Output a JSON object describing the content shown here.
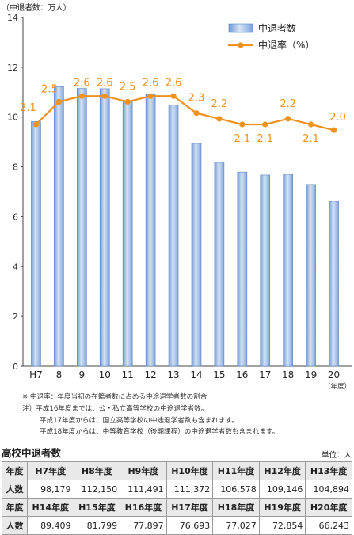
{
  "chart_data": {
    "type": "bar+line",
    "y_unit_label": "（中退者数：万人）",
    "categories": [
      "H7",
      "8",
      "9",
      "10",
      "11",
      "12",
      "13",
      "14",
      "15",
      "16",
      "17",
      "18",
      "19",
      "20"
    ],
    "x_unit_label": "（年度）",
    "ylim": [
      0,
      14
    ],
    "yticks": [
      "0",
      "2",
      "4",
      "6",
      "8",
      "10",
      "12",
      "14"
    ],
    "legend_position": "top-right",
    "series": [
      {
        "name": "中退者数",
        "type": "bar",
        "color": "#8fb2e0",
        "values": [
          9.82,
          11.22,
          11.15,
          11.14,
          10.66,
          10.91,
          10.49,
          8.94,
          8.18,
          7.79,
          7.67,
          7.7,
          7.29,
          6.62
        ]
      },
      {
        "name": "中退率（%）",
        "type": "line",
        "color": "#f0921e",
        "values": [
          2.1,
          2.5,
          2.6,
          2.6,
          2.5,
          2.6,
          2.6,
          2.3,
          2.2,
          2.1,
          2.1,
          2.2,
          2.1,
          2.0
        ],
        "labels": [
          "2.1",
          "2.5",
          "2.6",
          "2.6",
          "2.5",
          "2.6",
          "2.6",
          "2.3",
          "2.2",
          "2.1",
          "2.1",
          "2.2",
          "2.1",
          "2.0"
        ]
      }
    ]
  },
  "notes": {
    "line1": "※ 中退率：年度当初の在籍者数に占める中途退学者数の割合",
    "line2": "注）平成16年度までは、公・私立高等学校の中途退学者数。",
    "line3": "平成17年度からは、国立高等学校の中途退学者数も含まれます。",
    "line4": "平成18年度からは、中等教育学校（後期課程）の中途退学者数も含まれます。"
  },
  "table": {
    "title": "高校中退者数",
    "unit": "単位：人",
    "row_label_year": "年度",
    "row_label_count": "人数",
    "part1": {
      "years": [
        "H7年度",
        "H8年度",
        "H9年度",
        "H10年度",
        "H11年度",
        "H12年度",
        "H13年度"
      ],
      "counts": [
        "98,179",
        "112,150",
        "111,491",
        "111,372",
        "106,578",
        "109,146",
        "104,894"
      ]
    },
    "part2": {
      "years": [
        "H14年度",
        "H15年度",
        "H16年度",
        "H17年度",
        "H18年度",
        "H19年度",
        "H20年度"
      ],
      "counts": [
        "89,409",
        "81,799",
        "77,897",
        "76,693",
        "77,027",
        "72,854",
        "66,243"
      ]
    }
  }
}
